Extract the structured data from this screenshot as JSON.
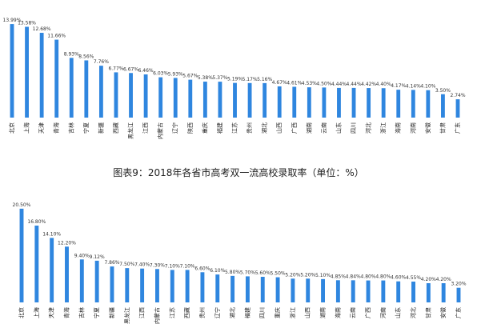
{
  "colors": {
    "bar": "#2f86df",
    "text": "#333333"
  },
  "caption": "图表9：2018年各省市高考双一流高校录取率（单位：%）",
  "chart_data": [
    {
      "type": "bar",
      "title": "",
      "xlabel": "",
      "ylabel": "",
      "ylim": [
        0,
        14
      ],
      "categories": [
        "北京",
        "上海",
        "天津",
        "青海",
        "吉林",
        "宁夏",
        "新疆",
        "西藏",
        "黑龙江",
        "江西",
        "内蒙古",
        "辽宁",
        "陕西",
        "重庆",
        "福建",
        "江苏",
        "贵州",
        "湖北",
        "山西",
        "广西",
        "湖南",
        "云南",
        "山东",
        "四川",
        "河北",
        "浙江",
        "海南",
        "河南",
        "安徽",
        "甘肃",
        "广东"
      ],
      "values": [
        13.99,
        13.58,
        12.68,
        11.66,
        8.93,
        8.56,
        7.76,
        6.77,
        6.67,
        6.46,
        6.03,
        5.93,
        5.67,
        5.38,
        5.37,
        5.19,
        5.17,
        5.16,
        4.67,
        4.61,
        4.53,
        4.5,
        4.44,
        4.44,
        4.42,
        4.4,
        4.17,
        4.14,
        4.1,
        3.5,
        2.74
      ],
      "data_labels": [
        "13.99%",
        "13.58%",
        "12.68%",
        "11.66%",
        "8.93%",
        "8.56%",
        "7.76%",
        "6.77%",
        "6.67%",
        "6.46%",
        "6.03%",
        "5.93%",
        "5.67%",
        "5.38%",
        "5.37%",
        "5.19%",
        "5.17%",
        "5.16%",
        "4.67%",
        "4.61%",
        "4.53%",
        "4.50%",
        "4.44%",
        "4.44%",
        "4.42%",
        "4.40%",
        "4.17%",
        "4.14%",
        "4.10%",
        "3.50%",
        "2.74%"
      ],
      "grid": false,
      "legend": "none"
    },
    {
      "type": "bar",
      "title": "",
      "xlabel": "",
      "ylabel": "",
      "ylim": [
        0,
        21
      ],
      "categories": [
        "北京",
        "上海",
        "天津",
        "青海",
        "吉林",
        "宁夏",
        "新疆",
        "黑龙江",
        "江西",
        "内蒙古",
        "江苏",
        "西藏",
        "贵州",
        "辽宁",
        "湖北",
        "福建",
        "四川",
        "重庆",
        "浙江",
        "山西",
        "湖南",
        "海南",
        "云南",
        "广西",
        "河南",
        "山东",
        "河北",
        "甘肃",
        "安徽",
        "广东"
      ],
      "values": [
        20.5,
        16.8,
        14.1,
        12.2,
        9.4,
        9.12,
        7.86,
        7.5,
        7.4,
        7.3,
        7.1,
        7.1,
        6.6,
        6.1,
        5.8,
        5.7,
        5.6,
        5.5,
        5.2,
        5.2,
        5.1,
        4.85,
        4.84,
        4.8,
        4.8,
        4.6,
        4.55,
        4.2,
        4.2,
        3.2
      ],
      "data_labels": [
        "20.50%",
        "16.80%",
        "14.10%",
        "12.20%",
        "9.40%",
        "9.12%",
        "7.86%",
        "7.50%",
        "7.40%",
        "7.30%",
        "7.10%",
        "7.10%",
        "6.60%",
        "6.10%",
        "5.80%",
        "5.70%",
        "5.60%",
        "5.50%",
        "5.20%",
        "5.20%",
        "5.10%",
        "4.85%",
        "4.84%",
        "4.80%",
        "4.80%",
        "4.60%",
        "4.55%",
        "4.20%",
        "4.20%",
        "3.20%"
      ],
      "grid": false,
      "legend": "none"
    }
  ]
}
